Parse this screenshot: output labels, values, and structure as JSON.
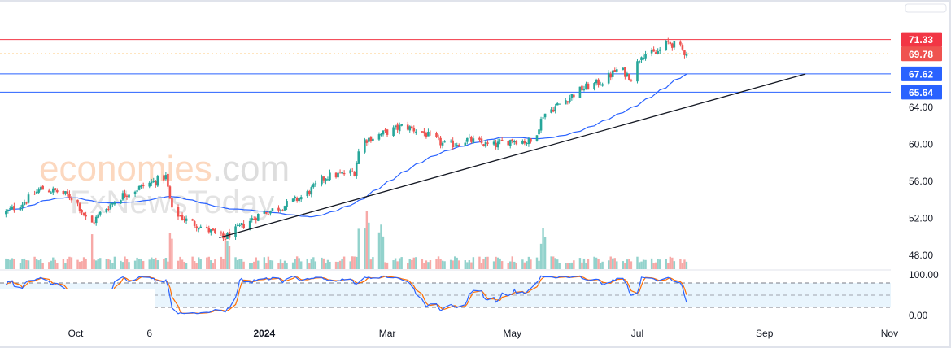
{
  "chart_data": {
    "type": "candlestick",
    "title": "",
    "price_axis": {
      "ticks": [
        48,
        52,
        56,
        60,
        64
      ],
      "tick_labels": [
        "48.00",
        "52.00",
        "56.00",
        "60.00",
        "64.00"
      ],
      "ylim": [
        46.4,
        74.8
      ]
    },
    "time_axis": {
      "labels": [
        {
          "date": "2023-10-01",
          "text": "Oct",
          "bold": false
        },
        {
          "date": "2023-11-06",
          "text": "6",
          "bold": false
        },
        {
          "date": "2024-01-01",
          "text": "2024",
          "bold": true
        },
        {
          "date": "2024-03-01",
          "text": "Mar",
          "bold": false
        },
        {
          "date": "2024-05-01",
          "text": "May",
          "bold": false
        },
        {
          "date": "2024-07-01",
          "text": "Jul",
          "bold": false
        },
        {
          "date": "2024-09-01",
          "text": "Sep",
          "bold": false
        },
        {
          "date": "2024-11-01",
          "text": "Nov",
          "bold": false
        }
      ]
    },
    "close_path": [
      [
        "2023-08-27",
        52.5
      ],
      [
        "2023-09-06",
        53.8
      ],
      [
        "2023-09-14",
        55.2
      ],
      [
        "2023-09-24",
        54.8
      ],
      [
        "2023-10-01",
        54.0
      ],
      [
        "2023-10-06",
        52.0
      ],
      [
        "2023-10-08",
        51.2
      ],
      [
        "2023-10-14",
        52.8
      ],
      [
        "2023-10-24",
        54.5
      ],
      [
        "2023-11-03",
        55.5
      ],
      [
        "2023-11-14",
        56.5
      ],
      [
        "2023-11-17",
        52.8
      ],
      [
        "2023-11-24",
        51.8
      ],
      [
        "2023-12-04",
        50.8
      ],
      [
        "2023-12-12",
        49.8
      ],
      [
        "2023-12-20",
        51.0
      ],
      [
        "2023-12-30",
        52.5
      ],
      [
        "2024-01-09",
        53.2
      ],
      [
        "2024-01-21",
        54.5
      ],
      [
        "2024-01-31",
        56.5
      ],
      [
        "2024-02-14",
        57.0
      ],
      [
        "2024-02-17",
        60.3
      ],
      [
        "2024-02-26",
        61.0
      ],
      [
        "2024-03-09",
        62.0
      ],
      [
        "2024-03-18",
        61.3
      ],
      [
        "2024-03-30",
        59.8
      ],
      [
        "2024-04-09",
        60.5
      ],
      [
        "2024-04-21",
        59.8
      ],
      [
        "2024-05-01",
        60.5
      ],
      [
        "2024-05-11",
        60.2
      ],
      [
        "2024-05-16",
        63.2
      ],
      [
        "2024-05-25",
        64.5
      ],
      [
        "2024-06-04",
        66.0
      ],
      [
        "2024-06-14",
        66.8
      ],
      [
        "2024-06-22",
        68.2
      ],
      [
        "2024-06-28",
        67.2
      ],
      [
        "2024-07-03",
        69.8
      ],
      [
        "2024-07-10",
        69.8
      ],
      [
        "2024-07-16",
        71.0
      ],
      [
        "2024-07-21",
        70.6
      ],
      [
        "2024-07-25",
        69.78
      ]
    ],
    "moving_average": {
      "type": "SMA",
      "period": 50,
      "color": "#2962ff"
    },
    "trendline": {
      "from": [
        "2023-12-10",
        49.9
      ],
      "to": [
        "2024-09-21",
        67.6
      ],
      "color": "#131722"
    },
    "levels": [
      {
        "price": 71.33,
        "label": "71.33",
        "color": "#f23645",
        "style": "solid"
      },
      {
        "price": 69.78,
        "label": "69.78",
        "color": "#ff9800",
        "tag_color": "#ef5350",
        "style": "dotted"
      },
      {
        "price": 67.62,
        "label": "67.62",
        "color": "#2962ff",
        "style": "solid"
      },
      {
        "price": 65.64,
        "label": "65.64",
        "color": "#2962ff",
        "style": "solid"
      }
    ],
    "volume_spikes": [
      [
        "2023-10-08",
        2.8
      ],
      [
        "2023-11-17",
        3.6
      ],
      [
        "2024-02-17",
        3.5
      ],
      [
        "2024-02-20",
        4.0
      ],
      [
        "2024-02-27",
        3.0
      ],
      [
        "2024-05-16",
        3.3
      ],
      [
        "2023-12-14",
        2.5
      ]
    ],
    "stochastic": {
      "k_period": 14,
      "smooth": 3,
      "d_period": 3,
      "upper": 80,
      "middle": 50,
      "lower": 20,
      "k_color": "#2962ff",
      "d_color": "#ff6d00",
      "axis_labels": [
        "100.00",
        "0.00"
      ]
    },
    "colors": {
      "up": "#26a69a",
      "down": "#ef5350"
    }
  },
  "watermark": {
    "brand": "economies",
    "suffix": ".com",
    "second": "FxNewsToday"
  }
}
